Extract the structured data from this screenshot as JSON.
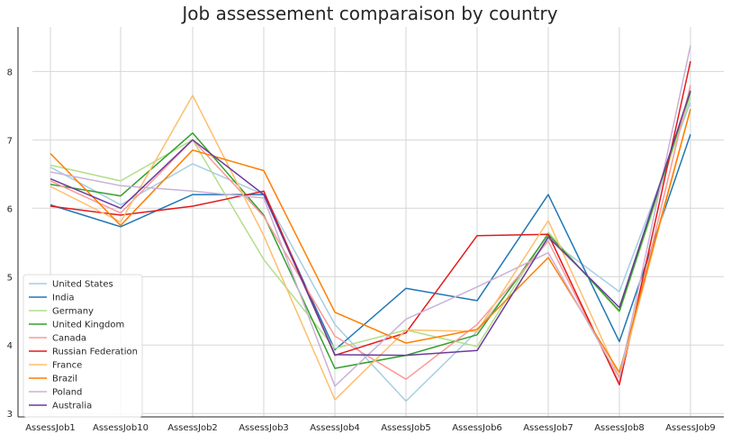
{
  "chart_data": {
    "type": "line",
    "title": "Job assessement comparaison by country",
    "xlabel": "",
    "ylabel": "",
    "categories": [
      "AssessJob1",
      "AssessJob10",
      "AssessJob2",
      "AssessJob3",
      "AssessJob4",
      "AssessJob5",
      "AssessJob6",
      "AssessJob7",
      "AssessJob8",
      "AssessJob9"
    ],
    "ylim": [
      2.95,
      8.65
    ],
    "yticks": [
      3,
      4,
      5,
      6,
      7,
      8
    ],
    "grid": true,
    "legend_position": "lower-left",
    "series": [
      {
        "name": "United States",
        "color": "#a6cee3",
        "values": [
          6.6,
          6.05,
          6.65,
          6.2,
          4.3,
          3.18,
          4.2,
          5.55,
          4.78,
          7.55
        ]
      },
      {
        "name": "India",
        "color": "#1f78b4",
        "values": [
          6.05,
          5.73,
          6.2,
          6.2,
          3.93,
          4.83,
          4.65,
          6.2,
          4.05,
          7.08
        ]
      },
      {
        "name": "Germany",
        "color": "#b2df8a",
        "values": [
          6.63,
          6.4,
          7.0,
          5.25,
          3.95,
          4.22,
          3.98,
          5.65,
          4.48,
          7.63
        ]
      },
      {
        "name": "United Kingdom",
        "color": "#33a02c",
        "values": [
          6.35,
          6.18,
          7.1,
          5.9,
          3.66,
          3.85,
          4.15,
          5.62,
          4.5,
          7.7
        ]
      },
      {
        "name": "Canada",
        "color": "#fb9a99",
        "values": [
          6.4,
          5.93,
          7.0,
          5.88,
          4.13,
          3.5,
          4.3,
          5.52,
          3.45,
          7.8
        ]
      },
      {
        "name": "Russian Federation",
        "color": "#e31a1c",
        "values": [
          6.03,
          5.9,
          6.03,
          6.25,
          3.85,
          4.18,
          5.6,
          5.62,
          3.42,
          8.15
        ]
      },
      {
        "name": "France",
        "color": "#fdbf6f",
        "values": [
          6.32,
          5.8,
          7.65,
          5.6,
          3.2,
          4.22,
          4.2,
          5.82,
          3.53,
          7.45
        ]
      },
      {
        "name": "Brazil",
        "color": "#ff7f00",
        "values": [
          6.8,
          5.75,
          6.85,
          6.55,
          4.48,
          4.03,
          4.23,
          5.28,
          3.6,
          7.45
        ]
      },
      {
        "name": "Poland",
        "color": "#cab2d6",
        "values": [
          6.53,
          6.33,
          6.25,
          6.15,
          3.4,
          4.38,
          4.85,
          5.35,
          3.52,
          8.38
        ]
      },
      {
        "name": "Australia",
        "color": "#6a3d9a",
        "values": [
          6.43,
          6.0,
          7.0,
          6.2,
          3.86,
          3.85,
          3.92,
          5.58,
          4.55,
          7.72
        ]
      }
    ]
  }
}
